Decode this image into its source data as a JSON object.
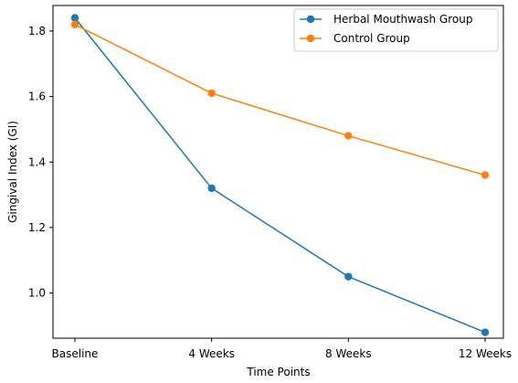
{
  "chart_data": {
    "type": "line",
    "title": "",
    "xlabel": "Time Points",
    "ylabel": "Gingival Index (GI)",
    "categories": [
      "Baseline",
      "4 Weeks",
      "8 Weeks",
      "12 Weeks"
    ],
    "series": [
      {
        "name": "Herbal Mouthwash Group",
        "values": [
          1.84,
          1.32,
          1.05,
          0.88
        ],
        "color": "#1f77b4"
      },
      {
        "name": "Control Group",
        "values": [
          1.82,
          1.61,
          1.48,
          1.36
        ],
        "color": "#ff7f0e"
      }
    ],
    "ylim": [
      0.862,
      1.878
    ],
    "yticks": [
      1.0,
      1.2,
      1.4,
      1.6,
      1.8
    ],
    "ytick_labels": [
      "1.0",
      "1.2",
      "1.4",
      "1.6",
      "1.8"
    ],
    "grid": false,
    "legend_position": "upper right",
    "marker": "circle"
  }
}
